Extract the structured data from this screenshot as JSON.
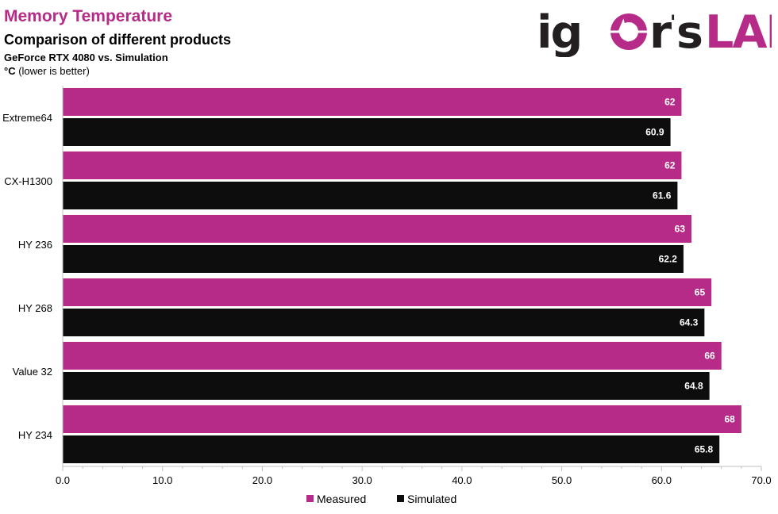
{
  "header": {
    "title": "Memory Temperature",
    "subtitle": "Comparison  of different products",
    "line3": "GeForce RTX 4080 vs. Simulation",
    "unit_symbol": "°C",
    "unit_note": " (lower is better)"
  },
  "logo": {
    "part1": "ig",
    "part2": "r",
    "part3": "s",
    "part4": "LAB"
  },
  "colors": {
    "measured": "#b52b87",
    "simulated": "#0d0d0d",
    "title": "#b52b87",
    "logo_dark": "#231f20"
  },
  "chart_data": {
    "type": "bar",
    "orientation": "horizontal",
    "categories": [
      "Extreme64",
      "CX-H1300",
      "HY 236",
      "HY 268",
      "Value 32",
      "HY 234"
    ],
    "series": [
      {
        "name": "Measured",
        "values": [
          62,
          62,
          63,
          65,
          66,
          68
        ]
      },
      {
        "name": "Simulated",
        "values": [
          60.9,
          61.6,
          62.2,
          64.3,
          64.8,
          65.8
        ]
      }
    ],
    "xlim": [
      0,
      70
    ],
    "xticks": [
      "0.0",
      "10.0",
      "20.0",
      "30.0",
      "40.0",
      "50.0",
      "60.0",
      "70.0"
    ],
    "xlabel": "",
    "ylabel": "",
    "grid": false,
    "legend_position": "bottom"
  }
}
